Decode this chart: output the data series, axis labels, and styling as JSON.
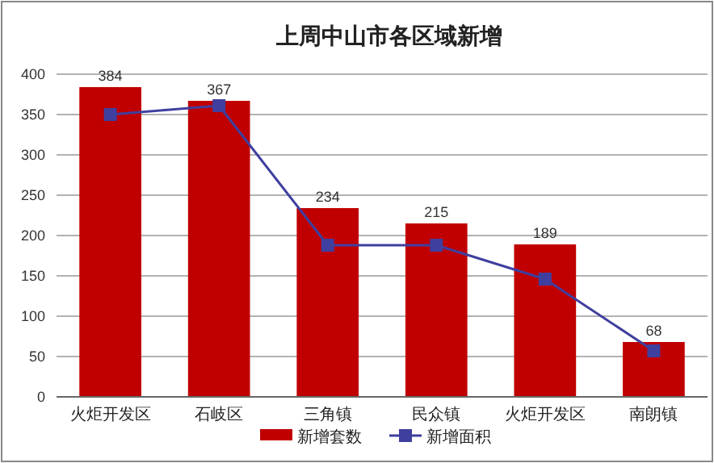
{
  "chart_data": {
    "type": "bar",
    "title": "上周中山市各区域新增",
    "categories": [
      "火炬开发区",
      "石岐区",
      "三角镇",
      "民众镇",
      "火炬开发区",
      "南朗镇"
    ],
    "series": [
      {
        "name": "新增套数",
        "color": "#c00000",
        "values": [
          384,
          367,
          234,
          215,
          189,
          68
        ],
        "value_labels": [
          "384",
          "367",
          "234",
          "215",
          "189",
          "68"
        ]
      },
      {
        "name": "新增面积",
        "type": "line",
        "color": "#3f3f9f",
        "values": [
          350,
          361,
          188,
          188,
          146,
          57
        ],
        "marker": "square"
      }
    ],
    "ylim": [
      0,
      400
    ],
    "yticks": [
      0,
      50,
      100,
      150,
      200,
      250,
      300,
      350,
      400
    ],
    "grid": "y",
    "legend": "bottom"
  }
}
